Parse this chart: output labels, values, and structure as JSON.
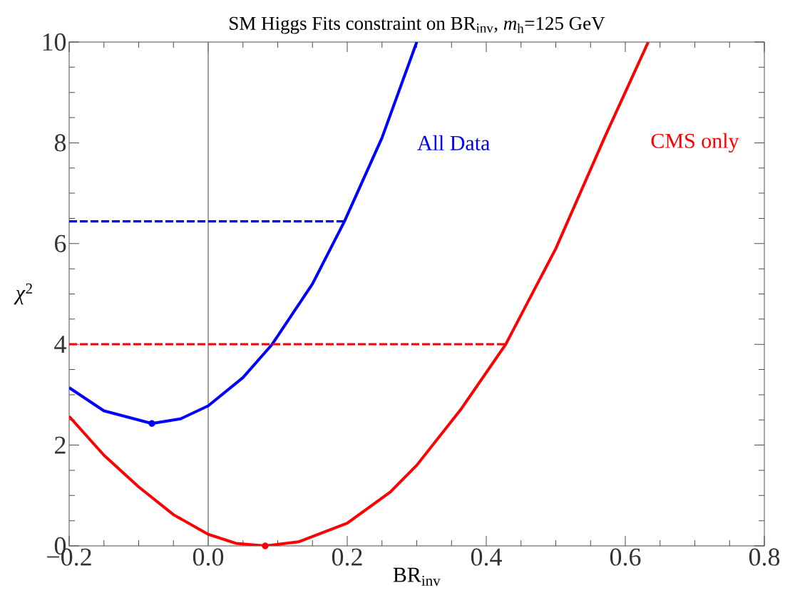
{
  "chart_data": {
    "type": "line",
    "title": "SM Higgs Fits constraint on BR$_{inv}$, *m*$_{h}$=125 GeV",
    "xlabel": "BR$_{inv}$",
    "ylabel": "*χ*$^{2}$",
    "xlim": [
      -0.2,
      0.8
    ],
    "ylim": [
      0,
      10
    ],
    "xticks": [
      {
        "value": -0.2,
        "label": "−0.2"
      },
      {
        "value": 0,
        "label": "0.0"
      },
      0.2,
      0.4,
      0.6,
      0.8
    ],
    "yticks": [
      0,
      2,
      4,
      6,
      8,
      10
    ],
    "series": [
      {
        "name": "All Data",
        "color": "#0000ff",
        "x": [
          -0.2,
          -0.15,
          -0.081,
          -0.04,
          0,
          0.05,
          0.092,
          0.15,
          0.196,
          0.25,
          0.3
        ],
        "values": [
          3.14,
          2.68,
          2.43,
          2.52,
          2.78,
          3.34,
          4.0,
          5.2,
          6.44,
          8.1,
          10.0
        ]
      },
      {
        "name": "CMS only",
        "color": "#ff0000",
        "x": [
          -0.2,
          -0.15,
          -0.1,
          -0.05,
          0,
          0.04,
          0.082,
          0.13,
          0.2,
          0.262,
          0.3,
          0.363,
          0.428,
          0.5,
          0.57,
          0.633
        ],
        "values": [
          2.57,
          1.8,
          1.17,
          0.62,
          0.23,
          0.05,
          0,
          0.08,
          0.45,
          1.07,
          1.6,
          2.7,
          4.0,
          5.9,
          8.1,
          10.0
        ]
      },
      {
        "type": "line",
        "color": "#0000ff",
        "line_style": "dashed",
        "x": [
          -0.2,
          0.196
        ],
        "values": [
          6.44,
          6.44
        ]
      },
      {
        "type": "line",
        "color": "#ff0000",
        "line_style": "dashed",
        "x": [
          -0.2,
          0.428
        ],
        "values": [
          4,
          4
        ]
      },
      {
        "type": "scatter",
        "color": "#0000ff",
        "marker": "circle",
        "x": [
          -0.081
        ],
        "values": [
          2.43
        ]
      },
      {
        "type": "scatter",
        "color": "#ff0000",
        "marker": "circle",
        "x": [
          0.082
        ],
        "values": [
          0
        ]
      }
    ],
    "ref_lines": [
      {
        "axis": "x",
        "value": 0,
        "color": "#808080"
      }
    ]
  }
}
